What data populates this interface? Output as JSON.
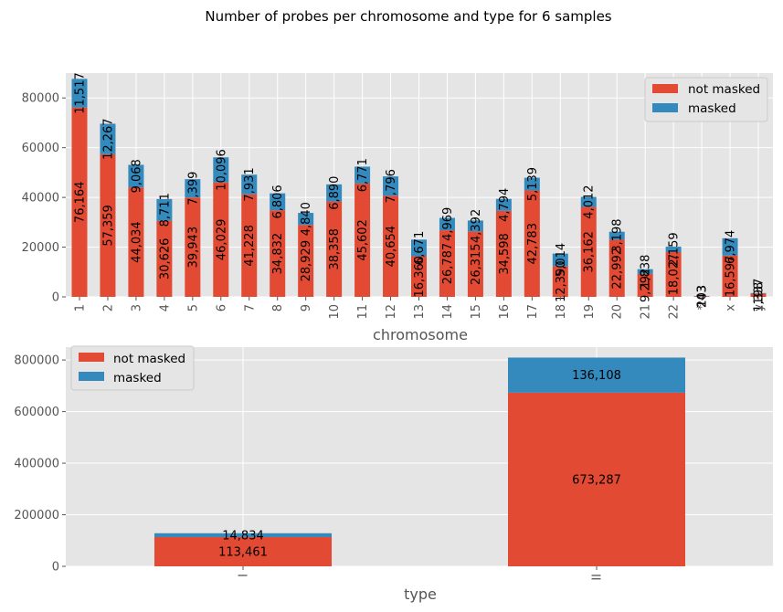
{
  "figure": {
    "suptitle": "Number of probes per chromosome and type for 6 samples"
  },
  "colors": {
    "not_masked": "#E24A33",
    "masked": "#348ABD",
    "plot_bg": "#E5E5E5",
    "grid": "#FFFFFF",
    "tick": "#555555"
  },
  "chart_data": [
    {
      "type": "bar",
      "stacked": true,
      "title": "",
      "xlabel": "chromosome",
      "ylabel": "",
      "ylim": [
        0,
        90000
      ],
      "yticks": [
        0,
        20000,
        40000,
        60000,
        80000
      ],
      "categories": [
        "1",
        "2",
        "3",
        "4",
        "5",
        "6",
        "7",
        "8",
        "9",
        "10",
        "11",
        "12",
        "13",
        "14",
        "15",
        "16",
        "17",
        "18",
        "19",
        "20",
        "21",
        "22",
        "*",
        "x",
        "y"
      ],
      "series": [
        {
          "name": "not masked",
          "values": [
            76164,
            57359,
            44034,
            30626,
            39943,
            46029,
            41228,
            34832,
            28929,
            38358,
            45602,
            40654,
            16360,
            26787,
            26315,
            34598,
            42783,
            12390,
            36162,
            22992,
            9292,
            18027,
            243,
            16597,
            1337
          ],
          "labels": [
            "76,164",
            "57,359",
            "44,034",
            "30,626",
            "39,943",
            "46,029",
            "41,228",
            "34,832",
            "28,929",
            "38,358",
            "45,602",
            "40,654",
            "16,360",
            "26,787",
            "26,315",
            "34,598",
            "42,783",
            "12,390",
            "36,162",
            "22,992",
            "9,292",
            "18,027",
            "243",
            "16,597",
            "1,337"
          ]
        },
        {
          "name": "masked",
          "values": [
            11517,
            12267,
            9068,
            8711,
            7399,
            10096,
            7931,
            6806,
            4840,
            6890,
            6771,
            7796,
            6671,
            4969,
            4392,
            4794,
            5139,
            5014,
            4012,
            3198,
            1838,
            2159,
            103,
            6974,
            198
          ],
          "labels": [
            "11,517",
            "12,267",
            "9,068",
            "8,711",
            "7,399",
            "10,096",
            "7,931",
            "6,806",
            "4,840",
            "6,890",
            "6,771",
            "7,796",
            "6,671",
            "4,969",
            "4,392",
            "4,794",
            "5,139",
            "5,014",
            "4,012",
            "3,198",
            "1,838",
            "2,159",
            "103",
            "6,974",
            "198"
          ]
        }
      ],
      "legend": {
        "position": "top-right",
        "entries": [
          "not masked",
          "masked"
        ]
      }
    },
    {
      "type": "bar",
      "stacked": true,
      "title": "",
      "xlabel": "type",
      "ylabel": "",
      "ylim": [
        0,
        850000
      ],
      "yticks": [
        0,
        200000,
        400000,
        600000,
        800000
      ],
      "categories": [
        "I",
        "II"
      ],
      "series": [
        {
          "name": "not masked",
          "values": [
            113461,
            673287
          ],
          "labels": [
            "113,461",
            "673,287"
          ]
        },
        {
          "name": "masked",
          "values": [
            14834,
            136108
          ],
          "labels": [
            "14,834",
            "136,108"
          ]
        }
      ],
      "legend": {
        "position": "top-left",
        "entries": [
          "not masked",
          "masked"
        ]
      }
    }
  ]
}
